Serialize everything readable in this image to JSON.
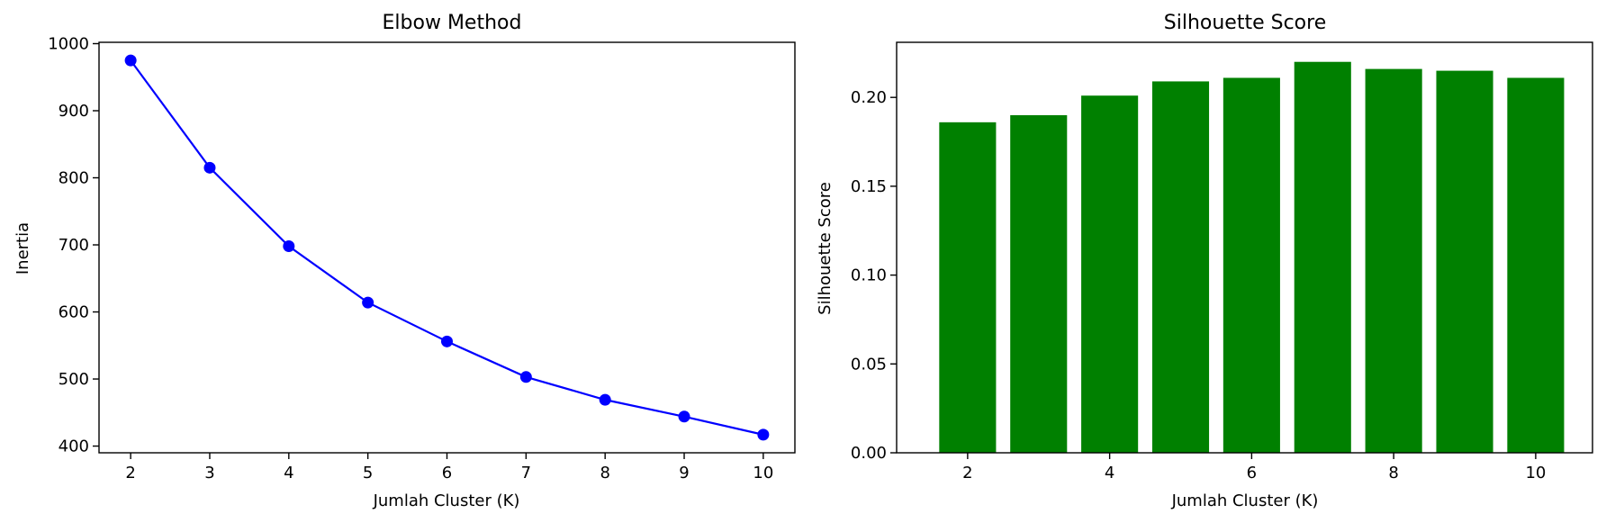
{
  "chart_data": [
    {
      "type": "line",
      "title": "Elbow Method",
      "xlabel": "Jumlah Cluster (K)",
      "ylabel": "Inertia",
      "x": [
        2,
        3,
        4,
        5,
        6,
        7,
        8,
        9,
        10
      ],
      "series": [
        {
          "values": [
            975,
            815,
            698,
            614,
            556,
            503,
            469,
            444,
            417
          ],
          "color": "#0000ff",
          "marker": "circle"
        }
      ],
      "xlim": [
        1.6,
        10.4
      ],
      "ylim": [
        390,
        1002
      ],
      "xticks": [
        2,
        3,
        4,
        5,
        6,
        7,
        8,
        9,
        10
      ],
      "yticks": [
        400,
        500,
        600,
        700,
        800,
        900,
        1000
      ],
      "grid": false
    },
    {
      "type": "bar",
      "title": "Silhouette Score",
      "xlabel": "Jumlah Cluster (K)",
      "ylabel": "Silhouette Score",
      "x": [
        2,
        3,
        4,
        5,
        6,
        7,
        8,
        9,
        10
      ],
      "values": [
        0.186,
        0.19,
        0.201,
        0.209,
        0.211,
        0.22,
        0.216,
        0.215,
        0.211
      ],
      "color": "#008000",
      "xlim": [
        1.0,
        10.8
      ],
      "ylim": [
        0,
        0.231
      ],
      "xticks": [
        2,
        4,
        6,
        8,
        10
      ],
      "yticks": [
        "0.00",
        "0.05",
        "0.10",
        "0.15",
        "0.20"
      ],
      "grid": false
    }
  ]
}
